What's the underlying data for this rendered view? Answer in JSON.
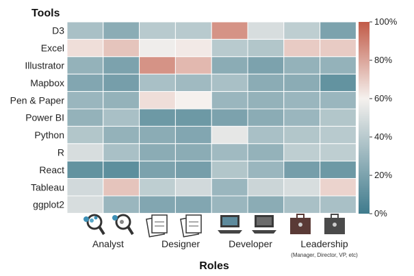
{
  "chart_data": {
    "type": "heatmap",
    "y_axis_title": "Tools",
    "x_axis_title": "Roles",
    "rows": [
      "D3",
      "Excel",
      "Illustrator",
      "Mapbox",
      "Pen & Paper",
      "Power BI",
      "Python",
      "R",
      "React",
      "Tableau",
      "ggplot2"
    ],
    "columns": [
      "Analyst",
      "Analyst",
      "Designer",
      "Designer",
      "Developer",
      "Developer",
      "Leadership",
      "Leadership"
    ],
    "role_groups": [
      {
        "label": "Analyst",
        "sublabel": "",
        "icon": "magnifier-icon"
      },
      {
        "label": "Designer",
        "sublabel": "",
        "icon": "notepad-icon"
      },
      {
        "label": "Developer",
        "sublabel": "",
        "icon": "laptop-icon"
      },
      {
        "label": "Leadership",
        "sublabel": "(Manager, Director, VP, etc)",
        "icon": "briefcase-icon"
      }
    ],
    "values_percent": [
      [
        35,
        25,
        40,
        40,
        85,
        50,
        42,
        20
      ],
      [
        65,
        72,
        58,
        62,
        40,
        38,
        70,
        70
      ],
      [
        28,
        20,
        85,
        75,
        25,
        20,
        28,
        28
      ],
      [
        22,
        18,
        35,
        32,
        35,
        25,
        25,
        12
      ],
      [
        30,
        28,
        65,
        60,
        30,
        28,
        30,
        30
      ],
      [
        28,
        35,
        15,
        15,
        20,
        25,
        30,
        38
      ],
      [
        38,
        28,
        25,
        22,
        55,
        35,
        38,
        40
      ],
      [
        50,
        35,
        25,
        25,
        32,
        28,
        42,
        42
      ],
      [
        12,
        10,
        20,
        18,
        38,
        30,
        18,
        15
      ],
      [
        48,
        72,
        42,
        48,
        30,
        46,
        50,
        68
      ],
      [
        50,
        30,
        22,
        22,
        30,
        25,
        35,
        35
      ]
    ],
    "colorbar": {
      "ticks": [
        "0%",
        "20%",
        "40%",
        "60%",
        "80%",
        "100%"
      ],
      "low_color": "#3f7b8d",
      "mid_color": "#f5f1ee",
      "high_color": "#c15a47"
    },
    "grid": true
  }
}
